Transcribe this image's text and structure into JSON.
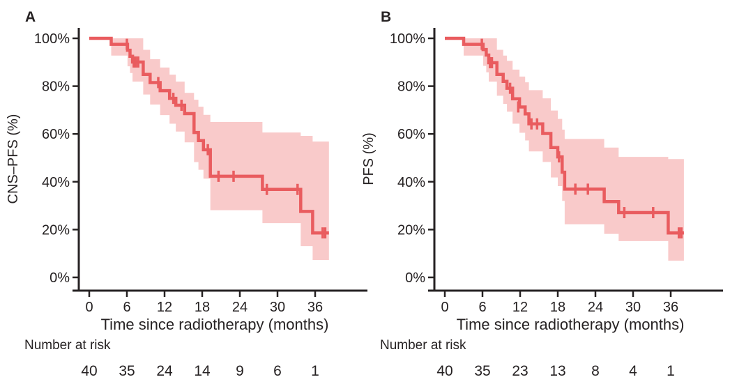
{
  "figure": {
    "background": "#ffffff",
    "colors": {
      "curve": "#e95c5f",
      "band": "#f9caca",
      "text": "#262223",
      "axis": "#262223"
    }
  },
  "chart_data": [
    {
      "type": "line",
      "subtype": "kaplan-meier-step-curve-with-confidence-band",
      "panel_label": "A",
      "ylabel": "CNS–PFS (%)",
      "xlabel": "Time since radiotherapy (months)",
      "xlim": [
        0,
        38.5
      ],
      "ylim": [
        0,
        100
      ],
      "xticks": [
        0,
        6,
        12,
        18,
        24,
        30,
        36
      ],
      "ytick_values": [
        0,
        20,
        40,
        60,
        80,
        100
      ],
      "ytick_labels": [
        "0%",
        "20%",
        "40%",
        "60%",
        "80%",
        "100%"
      ],
      "grid": false,
      "legend": false,
      "confidence_band": true,
      "curve_end_t": 38.2,
      "steps": [
        {
          "t": 0,
          "s": 100,
          "lo": 100,
          "hi": 100
        },
        {
          "t": 3.5,
          "s": 97.5,
          "lo": 92.8,
          "hi": 100
        },
        {
          "t": 6.1,
          "s": 95.0,
          "lo": 88.3,
          "hi": 100
        },
        {
          "t": 6.5,
          "s": 92.5,
          "lo": 85.5,
          "hi": 100
        },
        {
          "t": 6.9,
          "s": 90.1,
          "lo": 81.9,
          "hi": 100
        },
        {
          "t": 8.6,
          "s": 84.9,
          "lo": 76.5,
          "hi": 95.2
        },
        {
          "t": 9.7,
          "s": 81.5,
          "lo": 72.3,
          "hi": 91.3
        },
        {
          "t": 11.3,
          "s": 78.1,
          "lo": 67.9,
          "hi": 87.8
        },
        {
          "t": 12.8,
          "s": 74.9,
          "lo": 64.3,
          "hi": 84.8
        },
        {
          "t": 13.8,
          "s": 72.0,
          "lo": 61.0,
          "hi": 81.9
        },
        {
          "t": 15.2,
          "s": 68.5,
          "lo": 56.5,
          "hi": 77.2
        },
        {
          "t": 16.7,
          "s": 60.6,
          "lo": 48.2,
          "hi": 74.3
        },
        {
          "t": 17.4,
          "s": 57.2,
          "lo": 45.0,
          "hi": 71.4
        },
        {
          "t": 18.2,
          "s": 53.4,
          "lo": 41.3,
          "hi": 68.0
        },
        {
          "t": 19.3,
          "s": 42.3,
          "lo": 28.1,
          "hi": 65.0
        },
        {
          "t": 27.6,
          "s": 36.8,
          "lo": 22.7,
          "hi": 60.6
        },
        {
          "t": 33.7,
          "s": 27.6,
          "lo": 13.1,
          "hi": 59.2
        },
        {
          "t": 35.6,
          "s": 18.6,
          "lo": 7.3,
          "hi": 56.8
        }
      ],
      "censor_marks": [
        {
          "t": 6.0,
          "s": 97.5
        },
        {
          "t": 7.1,
          "s": 90.1
        },
        {
          "t": 7.4,
          "s": 90.1
        },
        {
          "t": 7.8,
          "s": 90.1
        },
        {
          "t": 11.0,
          "s": 81.5
        },
        {
          "t": 13.4,
          "s": 74.9
        },
        {
          "t": 14.7,
          "s": 72.0
        },
        {
          "t": 18.9,
          "s": 53.4
        },
        {
          "t": 20.6,
          "s": 42.3
        },
        {
          "t": 23.0,
          "s": 42.3
        },
        {
          "t": 28.3,
          "s": 36.8
        },
        {
          "t": 33.2,
          "s": 36.8
        },
        {
          "t": 37.2,
          "s": 18.6
        },
        {
          "t": 37.6,
          "s": 18.6
        }
      ],
      "risk_table": {
        "header": "Number at risk",
        "times": [
          0,
          6,
          12,
          18,
          24,
          30,
          36
        ],
        "counts": [
          40,
          35,
          24,
          14,
          9,
          6,
          1
        ]
      }
    },
    {
      "type": "line",
      "subtype": "kaplan-meier-step-curve-with-confidence-band",
      "panel_label": "B",
      "ylabel": "PFS (%)",
      "xlabel": "Time since radiotherapy (months)",
      "xlim": [
        0,
        38.5
      ],
      "ylim": [
        0,
        100
      ],
      "xticks": [
        0,
        6,
        12,
        18,
        24,
        30,
        36
      ],
      "ytick_values": [
        0,
        20,
        40,
        60,
        80,
        100
      ],
      "ytick_labels": [
        "0%",
        "20%",
        "40%",
        "60%",
        "80%",
        "100%"
      ],
      "grid": false,
      "legend": false,
      "confidence_band": true,
      "curve_end_t": 38.1,
      "steps": [
        {
          "t": 0,
          "s": 100,
          "lo": 100,
          "hi": 100
        },
        {
          "t": 3.0,
          "s": 97.5,
          "lo": 92.8,
          "hi": 100
        },
        {
          "t": 6.1,
          "s": 95.3,
          "lo": 88.5,
          "hi": 100
        },
        {
          "t": 6.6,
          "s": 93.0,
          "lo": 85.8,
          "hi": 100
        },
        {
          "t": 7.0,
          "s": 89.8,
          "lo": 81.9,
          "hi": 100
        },
        {
          "t": 8.3,
          "s": 84.9,
          "lo": 76.0,
          "hi": 95.2
        },
        {
          "t": 9.3,
          "s": 82.0,
          "lo": 72.6,
          "hi": 92.8
        },
        {
          "t": 9.9,
          "s": 79.1,
          "lo": 69.3,
          "hi": 90.6
        },
        {
          "t": 10.8,
          "s": 74.7,
          "lo": 64.3,
          "hi": 86.9
        },
        {
          "t": 11.9,
          "s": 71.3,
          "lo": 60.5,
          "hi": 84.0
        },
        {
          "t": 12.8,
          "s": 68.4,
          "lo": 57.3,
          "hi": 81.6
        },
        {
          "t": 13.4,
          "s": 64.2,
          "lo": 52.7,
          "hi": 78.3
        },
        {
          "t": 15.6,
          "s": 60.2,
          "lo": 48.3,
          "hi": 74.9
        },
        {
          "t": 16.9,
          "s": 54.3,
          "lo": 41.8,
          "hi": 69.8
        },
        {
          "t": 18.0,
          "s": 50.4,
          "lo": 38.2,
          "hi": 66.3
        },
        {
          "t": 18.7,
          "s": 44.0,
          "lo": 32.0,
          "hi": 61.8
        },
        {
          "t": 19.1,
          "s": 36.9,
          "lo": 22.2,
          "hi": 57.9
        },
        {
          "t": 25.4,
          "s": 31.7,
          "lo": 18.2,
          "hi": 54.3
        },
        {
          "t": 27.7,
          "s": 27.1,
          "lo": 15.2,
          "hi": 50.4
        },
        {
          "t": 35.6,
          "s": 18.6,
          "lo": 7.0,
          "hi": 49.5
        }
      ],
      "censor_marks": [
        {
          "t": 5.9,
          "s": 97.5
        },
        {
          "t": 7.2,
          "s": 89.8
        },
        {
          "t": 7.5,
          "s": 89.8
        },
        {
          "t": 10.4,
          "s": 79.1
        },
        {
          "t": 11.7,
          "s": 71.3
        },
        {
          "t": 13.8,
          "s": 64.2
        },
        {
          "t": 14.7,
          "s": 64.2
        },
        {
          "t": 18.2,
          "s": 50.4
        },
        {
          "t": 20.8,
          "s": 36.9
        },
        {
          "t": 22.8,
          "s": 36.9
        },
        {
          "t": 28.6,
          "s": 27.1
        },
        {
          "t": 33.2,
          "s": 27.1
        },
        {
          "t": 37.3,
          "s": 18.6
        },
        {
          "t": 37.7,
          "s": 18.6
        }
      ],
      "risk_table": {
        "header": "Number at risk",
        "times": [
          0,
          6,
          12,
          18,
          24,
          30,
          36
        ],
        "counts": [
          40,
          35,
          23,
          13,
          8,
          4,
          1
        ]
      }
    }
  ]
}
